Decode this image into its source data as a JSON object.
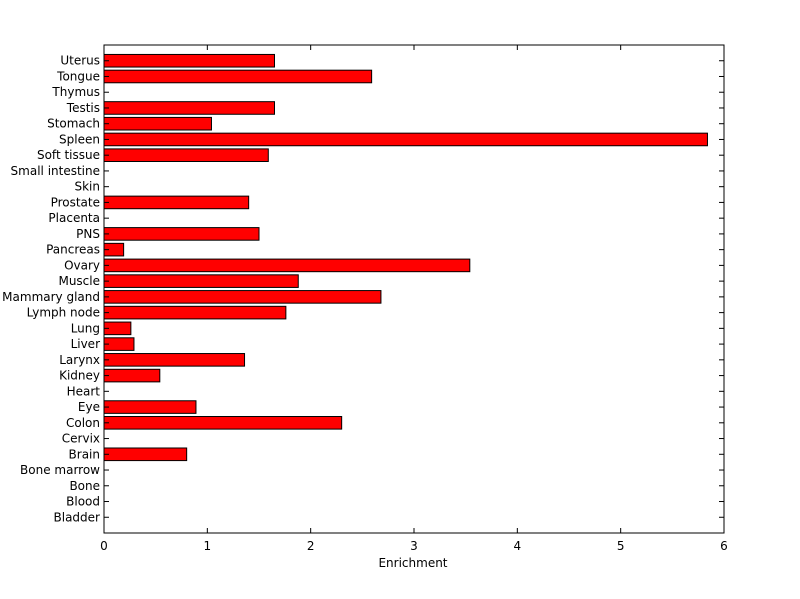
{
  "chart_data": {
    "type": "bar",
    "orientation": "horizontal",
    "categories": [
      "Uterus",
      "Tongue",
      "Thymus",
      "Testis",
      "Stomach",
      "Spleen",
      "Soft tissue",
      "Small intestine",
      "Skin",
      "Prostate",
      "Placenta",
      "PNS",
      "Pancreas",
      "Ovary",
      "Muscle",
      "Mammary gland",
      "Lymph node",
      "Lung",
      "Liver",
      "Larynx",
      "Kidney",
      "Heart",
      "Eye",
      "Colon",
      "Cervix",
      "Brain",
      "Bone marrow",
      "Bone",
      "Blood",
      "Bladder"
    ],
    "values": [
      1.65,
      2.59,
      0,
      1.65,
      1.04,
      5.84,
      1.59,
      0,
      0,
      1.4,
      0,
      1.5,
      0.19,
      3.54,
      1.88,
      2.68,
      1.76,
      0.26,
      0.29,
      1.36,
      0.54,
      0,
      0.89,
      2.3,
      0,
      0.8,
      0,
      0,
      0,
      0
    ],
    "xlabel": "Enrichment",
    "ylabel": "",
    "xlim": [
      0,
      6
    ],
    "xticks": [
      "0",
      "1",
      "2",
      "3",
      "4",
      "5",
      "6"
    ],
    "grid": false,
    "bar_color": "#ff0000",
    "bar_edge_color": "#000000"
  }
}
